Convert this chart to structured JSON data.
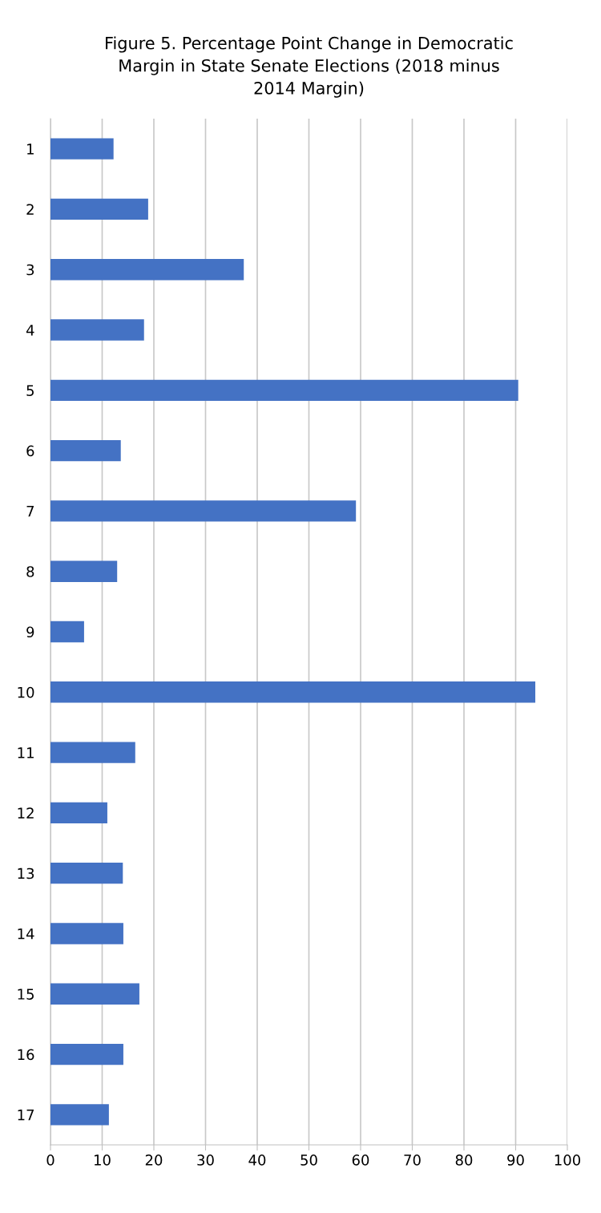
{
  "chart_data": {
    "type": "bar",
    "orientation": "horizontal",
    "title": "Figure 5. Percentage Point Change in Democratic\nMargin in State Senate Elections (2018 minus\n2014 Margin)",
    "categories": [
      "1",
      "2",
      "3",
      "4",
      "5",
      "6",
      "7",
      "8",
      "9",
      "10",
      "11",
      "12",
      "13",
      "14",
      "15",
      "16",
      "17"
    ],
    "values": [
      12.2,
      18.9,
      37.4,
      18.1,
      90.5,
      13.6,
      59.1,
      12.9,
      6.5,
      93.8,
      16.4,
      11.0,
      14.0,
      14.1,
      17.2,
      14.1,
      11.3
    ],
    "color": "#4472c4",
    "xlim": [
      0,
      100
    ],
    "xticks": [
      0,
      10,
      20,
      30,
      40,
      50,
      60,
      70,
      80,
      90,
      100
    ],
    "grid": "x",
    "legend": false
  }
}
